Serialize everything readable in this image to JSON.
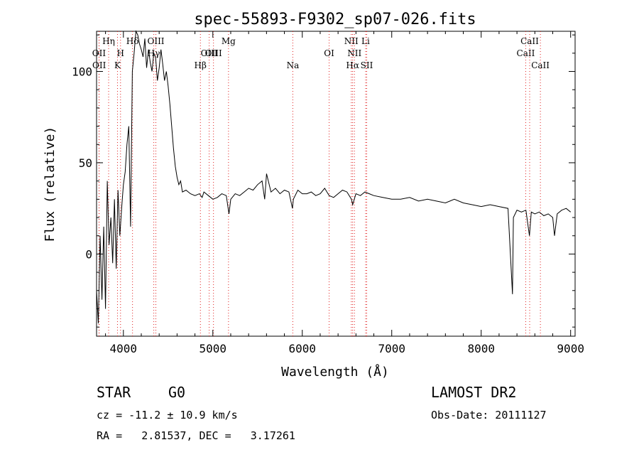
{
  "chart_data": {
    "type": "line",
    "title": "spec-55893-F9302_sp07-026.fits",
    "xlabel": "Wavelength (Å)",
    "ylabel": "Flux (relative)",
    "xlim": [
      3700,
      9050
    ],
    "ylim": [
      -45,
      122
    ],
    "xticks": [
      4000,
      5000,
      6000,
      7000,
      8000,
      9000
    ],
    "yticks": [
      0,
      50,
      100
    ],
    "grid": false,
    "line_color": "#000000",
    "marker_line_color": "#e02020",
    "series": [
      {
        "x": [
          3700,
          3720,
          3740,
          3760,
          3780,
          3800,
          3820,
          3840,
          3860,
          3880,
          3900,
          3920,
          3940,
          3960,
          3980,
          4000,
          4020,
          4040,
          4060,
          4080,
          4100,
          4120,
          4140,
          4160,
          4180,
          4200,
          4220,
          4240,
          4260,
          4280,
          4300,
          4320,
          4340,
          4360,
          4380,
          4400,
          4420,
          4440,
          4460,
          4480,
          4500,
          4520,
          4540,
          4560,
          4580,
          4600,
          4620,
          4640,
          4660,
          4700,
          4750,
          4800,
          4850,
          4880,
          4900,
          4950,
          5000,
          5050,
          5100,
          5150,
          5180,
          5200,
          5250,
          5300,
          5350,
          5400,
          5450,
          5500,
          5550,
          5580,
          5600,
          5650,
          5700,
          5750,
          5800,
          5850,
          5890,
          5900,
          5950,
          6000,
          6050,
          6100,
          6150,
          6200,
          6250,
          6300,
          6350,
          6400,
          6450,
          6500,
          6550,
          6563,
          6600,
          6650,
          6700,
          6750,
          6800,
          6900,
          7000,
          7100,
          7200,
          7300,
          7400,
          7500,
          7600,
          7700,
          7800,
          7900,
          8000,
          8100,
          8200,
          8300,
          8350,
          8360,
          8400,
          8450,
          8500,
          8540,
          8560,
          8600,
          8650,
          8700,
          8750,
          8800,
          8820,
          8850,
          8900,
          8950,
          9000
        ],
        "values": [
          -20,
          -38,
          10,
          -25,
          15,
          -30,
          40,
          5,
          20,
          -5,
          30,
          -8,
          35,
          10,
          25,
          38,
          45,
          60,
          70,
          15,
          100,
          110,
          122,
          120,
          115,
          112,
          108,
          118,
          102,
          112,
          105,
          100,
          110,
          108,
          95,
          102,
          112,
          104,
          95,
          100,
          92,
          82,
          70,
          58,
          48,
          42,
          38,
          40,
          34,
          35,
          33,
          32,
          33,
          31,
          34,
          32,
          30,
          31,
          33,
          32,
          22,
          30,
          33,
          32,
          34,
          36,
          35,
          38,
          40,
          30,
          44,
          34,
          36,
          33,
          35,
          34,
          25,
          30,
          35,
          33,
          33,
          34,
          32,
          33,
          36,
          32,
          31,
          33,
          35,
          34,
          30,
          27,
          33,
          32,
          34,
          33,
          32,
          31,
          30,
          30,
          31,
          29,
          30,
          29,
          28,
          30,
          28,
          27,
          26,
          27,
          26,
          25,
          -22,
          20,
          24,
          23,
          24,
          10,
          23,
          22,
          23,
          21,
          22,
          20,
          10,
          22,
          24,
          25,
          23
        ]
      }
    ],
    "line_markers": [
      {
        "label": "OII",
        "wavelength": 3727,
        "row": 2
      },
      {
        "label": "OII",
        "wavelength": 3729,
        "row": 3
      },
      {
        "label": "Hη",
        "wavelength": 3835,
        "row": 1
      },
      {
        "label": "H",
        "wavelength": 3968,
        "row": 2
      },
      {
        "label": "K",
        "wavelength": 3934,
        "row": 3
      },
      {
        "label": "Hδ",
        "wavelength": 4102,
        "row": 1
      },
      {
        "label": "OIII",
        "wavelength": 4363,
        "row": 1
      },
      {
        "label": "Hγ",
        "wavelength": 4340,
        "row": 2
      },
      {
        "label": "Hβ",
        "wavelength": 4861,
        "row": 3
      },
      {
        "label": "OIII",
        "wavelength": 4959,
        "row": 2
      },
      {
        "label": "OIII",
        "wavelength": 5007,
        "row": 2
      },
      {
        "label": "Mg",
        "wavelength": 5175,
        "row": 1
      },
      {
        "label": "Na",
        "wavelength": 5894,
        "row": 3
      },
      {
        "label": "OI",
        "wavelength": 6300,
        "row": 2
      },
      {
        "label": "NII",
        "wavelength": 6548,
        "row": 1
      },
      {
        "label": "NII",
        "wavelength": 6583,
        "row": 2
      },
      {
        "label": "Hα",
        "wavelength": 6563,
        "row": 3
      },
      {
        "label": "Li",
        "wavelength": 6708,
        "row": 1
      },
      {
        "label": "SII",
        "wavelength": 6720,
        "row": 3
      },
      {
        "label": "CaII",
        "wavelength": 8498,
        "row": 2
      },
      {
        "label": "CaII",
        "wavelength": 8542,
        "row": 1
      },
      {
        "label": "CaII",
        "wavelength": 8662,
        "row": 3
      }
    ]
  },
  "info": {
    "class_label": "STAR",
    "subclass": "G0",
    "survey": "LAMOST DR2",
    "cz": "cz = -11.2 ± 10.9 km/s",
    "obs_date": "Obs-Date: 20111127",
    "ra_dec": "RA =   2.81537, DEC =   3.17261"
  }
}
